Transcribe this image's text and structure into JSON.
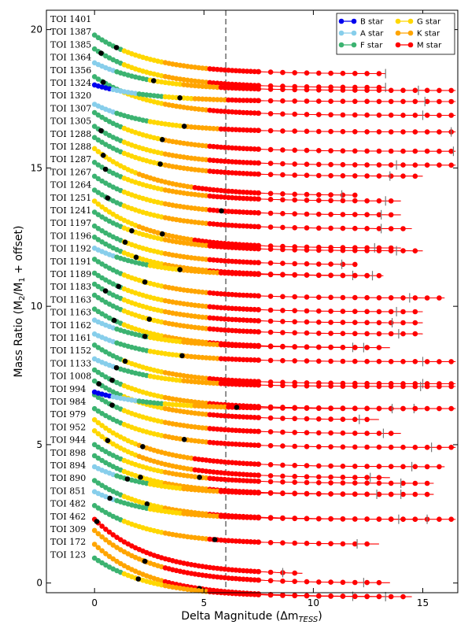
{
  "chart_data": {
    "type": "line",
    "xlabel": "Delta Magnitude (Δm",
    "xlabel_sub": "TESS",
    "xlabel_close": ")",
    "ylabel": "Mass Ratio (M",
    "ylabel_sub2": "2",
    "ylabel_mid": "/M",
    "ylabel_sub1": "1",
    "ylabel_tail": " + offset)",
    "xlim": [
      -2.2,
      16.6
    ],
    "ylim": [
      -0.35,
      20.7
    ],
    "xticks": [
      0,
      5,
      10,
      15
    ],
    "yticks": [
      0,
      5,
      10,
      15,
      20
    ],
    "grid": false,
    "contrast_limit_dmag": 6.0,
    "legend_position": "top-right",
    "legend": [
      {
        "label": "B star",
        "color": "#0000ee"
      },
      {
        "label": "A star",
        "color": "#87ceeb"
      },
      {
        "label": "F star",
        "color": "#3cb371"
      },
      {
        "label": "G star",
        "color": "#ffd700"
      },
      {
        "label": "K star",
        "color": "#ffa500"
      },
      {
        "label": "M star",
        "color": "#ff0000"
      }
    ],
    "spectral_colors": {
      "B": "#0000ee",
      "A": "#87ceeb",
      "F": "#3cb371",
      "G": "#ffd700",
      "K": "#ffa500",
      "M": "#ff0000"
    },
    "series": [
      {
        "name": "TOI 1401",
        "offset": 19.8,
        "start_type": "F",
        "black_dmag": 1.0,
        "max_dmag": 13.3,
        "cutoff_dmag": 13.3
      },
      {
        "name": "TOI 1387",
        "offset": 19.3,
        "start_type": "F",
        "black_dmag": 0.3,
        "max_dmag": 13.3,
        "cutoff_dmag": 13.3
      },
      {
        "name": "TOI 1385",
        "offset": 18.8,
        "start_type": "A",
        "black_dmag": 2.7,
        "max_dmag": 16.5,
        "cutoff_dmag": 14.8
      },
      {
        "name": "TOI 1364",
        "offset": 18.3,
        "start_type": "F",
        "black_dmag": 0.4,
        "max_dmag": 16.5,
        "cutoff_dmag": 15.0
      },
      {
        "name": "TOI 1356",
        "offset": 18.0,
        "start_type": "B",
        "black_dmag": 3.9,
        "max_dmag": 16.5,
        "cutoff_dmag": 15.1
      },
      {
        "name": "TOI 1324",
        "offset": 17.3,
        "start_type": "A",
        "black_dmag": 4.1,
        "max_dmag": 16.5,
        "cutoff_dmag": 16.3
      },
      {
        "name": "TOI 1320",
        "offset": 17.0,
        "start_type": "F",
        "black_dmag": 3.1,
        "max_dmag": 16.5,
        "cutoff_dmag": 16.4
      },
      {
        "name": "TOI 1307",
        "offset": 16.5,
        "start_type": "F",
        "black_dmag": 0.3,
        "max_dmag": 16.5,
        "cutoff_dmag": 13.8
      },
      {
        "name": "TOI 1305",
        "offset": 16.1,
        "start_type": "F",
        "black_dmag": 3.0,
        "max_dmag": 15.0,
        "cutoff_dmag": 13.5
      },
      {
        "name": "TOI 1288",
        "offset": 15.7,
        "start_type": "G",
        "black_dmag": 0.4,
        "max_dmag": 12.0,
        "cutoff_dmag": 11.3
      },
      {
        "name": "TOI 1288",
        "offset": 15.2,
        "start_type": "F",
        "black_dmag": 0.5,
        "max_dmag": 14.0,
        "cutoff_dmag": 13.3
      },
      {
        "name": "TOI 1287",
        "offset": 14.7,
        "start_type": "F",
        "black_dmag": 5.8,
        "max_dmag": 14.0,
        "cutoff_dmag": 13.1
      },
      {
        "name": "TOI 1267",
        "offset": 14.2,
        "start_type": "F",
        "black_dmag": 0.6,
        "max_dmag": 14.5,
        "cutoff_dmag": 13.1
      },
      {
        "name": "TOI 1264",
        "offset": 13.8,
        "start_type": "G",
        "black_dmag": 3.1,
        "max_dmag": 14.0,
        "cutoff_dmag": 12.8
      },
      {
        "name": "TOI 1251",
        "offset": 13.4,
        "start_type": "F",
        "black_dmag": 1.7,
        "max_dmag": 15.0,
        "cutoff_dmag": 13.8
      },
      {
        "name": "TOI 1241",
        "offset": 12.9,
        "start_type": "F",
        "black_dmag": 1.4,
        "max_dmag": 12.0,
        "cutoff_dmag": 11.3
      },
      {
        "name": "TOI 1197",
        "offset": 12.5,
        "start_type": "F",
        "black_dmag": 1.9,
        "max_dmag": 12.5,
        "cutoff_dmag": 11.8
      },
      {
        "name": "TOI 1196",
        "offset": 12.1,
        "start_type": "A",
        "black_dmag": 3.9,
        "max_dmag": 13.2,
        "cutoff_dmag": 12.7
      },
      {
        "name": "TOI 1192",
        "offset": 11.7,
        "start_type": "F",
        "black_dmag": 2.3,
        "max_dmag": 16.0,
        "cutoff_dmag": 14.4
      },
      {
        "name": "TOI 1191",
        "offset": 11.2,
        "start_type": "F",
        "black_dmag": 1.1,
        "max_dmag": 15.0,
        "cutoff_dmag": 13.8
      },
      {
        "name": "TOI 1189",
        "offset": 10.8,
        "start_type": "F",
        "black_dmag": 0.5,
        "max_dmag": 15.0,
        "cutoff_dmag": 13.6
      },
      {
        "name": "TOI 1183",
        "offset": 10.4,
        "start_type": "F",
        "black_dmag": 2.5,
        "max_dmag": 15.0,
        "cutoff_dmag": 13.9
      },
      {
        "name": "TOI 1163",
        "offset": 9.9,
        "start_type": "F",
        "black_dmag": 0.9,
        "max_dmag": 13.0,
        "cutoff_dmag": 11.8
      },
      {
        "name": "TOI 1163",
        "offset": 9.5,
        "start_type": "A",
        "black_dmag": 2.3,
        "max_dmag": 13.5,
        "cutoff_dmag": 12.3
      },
      {
        "name": "TOI 1162",
        "offset": 9.0,
        "start_type": "A",
        "black_dmag": 4.0,
        "max_dmag": 16.5,
        "cutoff_dmag": 15.0
      },
      {
        "name": "TOI 1161",
        "offset": 8.6,
        "start_type": "F",
        "black_dmag": 1.4,
        "max_dmag": 16.5,
        "cutoff_dmag": 15.0
      },
      {
        "name": "TOI 1152",
        "offset": 8.1,
        "start_type": "A",
        "black_dmag": 1.0,
        "max_dmag": 16.5,
        "cutoff_dmag": 14.9
      },
      {
        "name": "TOI 1133",
        "offset": 7.7,
        "start_type": "F",
        "black_dmag": 0.8,
        "max_dmag": 16.5,
        "cutoff_dmag": 14.6
      },
      {
        "name": "TOI 1008",
        "offset": 7.3,
        "start_type": "F",
        "black_dmag": 0.2,
        "max_dmag": 13.0,
        "cutoff_dmag": 12.1
      },
      {
        "name": "TOI 994",
        "offset": 6.8,
        "start_type": "F",
        "black_dmag": 0.8,
        "max_dmag": 14.0,
        "cutoff_dmag": 13.2
      },
      {
        "name": "TOI 984",
        "offset": 6.9,
        "start_type": "B",
        "black_dmag": 6.5,
        "max_dmag": 15.0,
        "cutoff_dmag": 13.6
      },
      {
        "name": "TOI 979",
        "offset": 6.3,
        "start_type": "F",
        "black_dmag": 4.1,
        "max_dmag": 16.5,
        "cutoff_dmag": 15.4
      },
      {
        "name": "TOI 952",
        "offset": 5.9,
        "start_type": "G",
        "black_dmag": 2.2,
        "max_dmag": 16.0,
        "cutoff_dmag": 14.5
      },
      {
        "name": "TOI 944",
        "offset": 5.5,
        "start_type": "G",
        "black_dmag": 0.6,
        "max_dmag": 13.5,
        "cutoff_dmag": 12.6
      },
      {
        "name": "TOI 898",
        "offset": 5.0,
        "start_type": "F",
        "black_dmag": 4.8,
        "max_dmag": 15.5,
        "cutoff_dmag": 14.0
      },
      {
        "name": "TOI 894",
        "offset": 4.6,
        "start_type": "F",
        "black_dmag": 2.1,
        "max_dmag": 15.5,
        "cutoff_dmag": 14.0
      },
      {
        "name": "TOI 890",
        "offset": 4.2,
        "start_type": "A",
        "black_dmag": 1.5,
        "max_dmag": 14.0,
        "cutoff_dmag": 12.9
      },
      {
        "name": "TOI 851",
        "offset": 3.7,
        "start_type": "F",
        "black_dmag": 2.4,
        "max_dmag": 16.5,
        "cutoff_dmag": 15.2
      },
      {
        "name": "TOI 482",
        "offset": 3.3,
        "start_type": "A",
        "black_dmag": 0.7,
        "max_dmag": 15.0,
        "cutoff_dmag": 13.9
      },
      {
        "name": "TOI 462",
        "offset": 2.8,
        "start_type": "F",
        "black_dmag": 5.5,
        "max_dmag": 13.0,
        "cutoff_dmag": 12.0
      },
      {
        "name": "TOI 309",
        "offset": 2.3,
        "start_type": "M",
        "black_dmag": 0.1,
        "max_dmag": 9.5,
        "cutoff_dmag": 8.6
      },
      {
        "name": "TOI 172",
        "offset": 1.9,
        "start_type": "K",
        "black_dmag": 2.3,
        "max_dmag": 13.5,
        "cutoff_dmag": 12.3
      },
      {
        "name": "TOI 123",
        "offset": 1.4,
        "start_type": "K",
        "black_dmag": 4.8,
        "max_dmag": 13.5,
        "cutoff_dmag": 11.8
      },
      {
        "name": "",
        "offset": 0.9,
        "start_type": "F",
        "black_dmag": 2.0,
        "max_dmag": 14.5,
        "cutoff_dmag": 13.3
      }
    ]
  }
}
